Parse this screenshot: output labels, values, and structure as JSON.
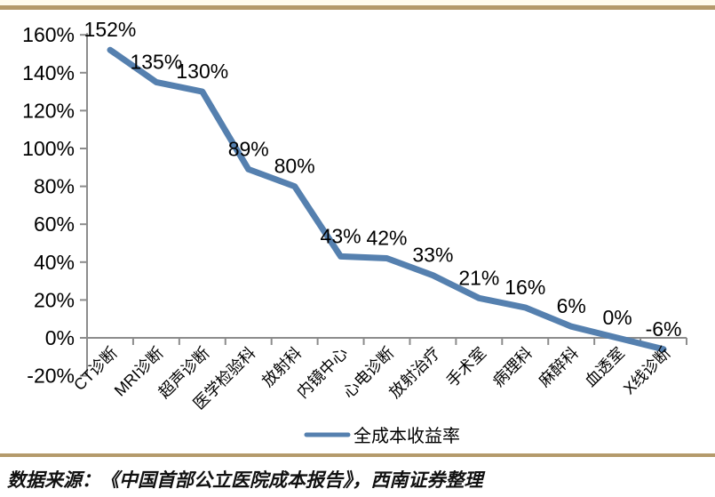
{
  "chart_data": {
    "type": "line",
    "title": "",
    "categories": [
      "CT诊断",
      "MRI诊断",
      "超声诊断",
      "医学检验科",
      "放射科",
      "内镜中心",
      "心电诊断",
      "放射治疗",
      "手术室",
      "病理科",
      "麻醉科",
      "血透室",
      "X线诊断"
    ],
    "series": [
      {
        "name": "全成本收益率",
        "values": [
          152,
          135,
          130,
          89,
          80,
          43,
          42,
          33,
          21,
          16,
          6,
          0,
          -6
        ],
        "labels": [
          "152%",
          "135%",
          "130%",
          "89%",
          "80%",
          "43%",
          "42%",
          "33%",
          "21%",
          "16%",
          "6%",
          "0%",
          "-6%"
        ],
        "color": "#5580AF"
      }
    ],
    "xlabel": "",
    "ylabel": "",
    "ylim": [
      -20,
      160
    ],
    "ytick_step": 20,
    "ytick_labels": [
      "160%",
      "140%",
      "120%",
      "100%",
      "80%",
      "60%",
      "40%",
      "20%",
      "0%",
      "-20%"
    ],
    "grid": false,
    "legend_position": "bottom",
    "axis_color": "#8C8C8C",
    "label_color": "#000000"
  },
  "footer": {
    "source_text": "数据来源：《中国首部公立医院成本报告》，西南证券整理"
  },
  "decor": {
    "gold_line_color": "#B49A6B",
    "cream_strip_color": "#FFFCEE"
  }
}
